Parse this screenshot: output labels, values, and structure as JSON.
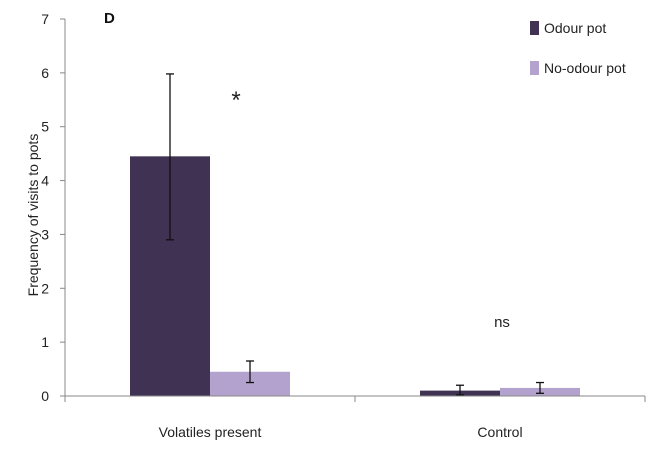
{
  "chart_data": {
    "type": "bar",
    "panel_label": "D",
    "ylabel": "Frequency of visits to pots",
    "xlabel": "",
    "ylim": [
      0,
      7
    ],
    "yticks": [
      0,
      1,
      2,
      3,
      4,
      5,
      6,
      7
    ],
    "categories": [
      "Volatiles present",
      "Control"
    ],
    "series": [
      {
        "name": "Odour pot",
        "color": "#3f3252",
        "values": [
          4.45,
          0.1
        ],
        "error_low": [
          2.9,
          0.02
        ],
        "error_high": [
          5.98,
          0.2
        ]
      },
      {
        "name": "No-odour pot",
        "color": "#b3a2cd",
        "values": [
          0.45,
          0.15
        ],
        "error_low": [
          0.25,
          0.05
        ],
        "error_high": [
          0.65,
          0.25
        ]
      }
    ],
    "annotations": [
      "*",
      "ns"
    ],
    "legend_position": "top-right",
    "grid": false
  }
}
